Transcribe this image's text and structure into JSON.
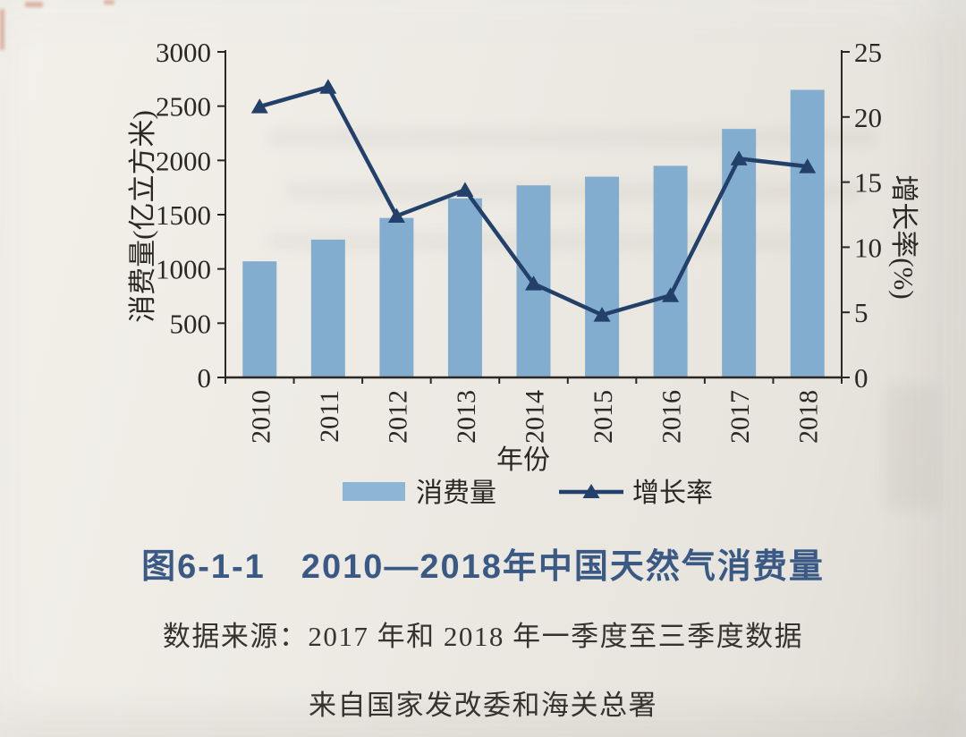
{
  "figure": {
    "title": "图6-1-1　2010—2018年中国天然气消费量",
    "source_line1": "数据来源：2017 年和 2018 年一季度至三季度数据",
    "source_line2": "来自国家发改委和海关总署"
  },
  "chart_data": {
    "type": "bar",
    "subtype": "bar-line-combo",
    "categories": [
      "2010",
      "2011",
      "2012",
      "2013",
      "2014",
      "2015",
      "2016",
      "2017",
      "2018"
    ],
    "series": [
      {
        "name": "消费量",
        "type": "bar",
        "axis": "left",
        "unit": "亿立方米",
        "color": "#83adce",
        "values": [
          1070,
          1270,
          1470,
          1650,
          1770,
          1850,
          1950,
          2290,
          2650
        ]
      },
      {
        "name": "增长率",
        "type": "line",
        "axis": "right",
        "unit": "%",
        "color": "#23406b",
        "marker": "triangle-up",
        "values": [
          20.8,
          22.3,
          12.4,
          14.4,
          7.2,
          4.8,
          6.3,
          16.8,
          16.2
        ]
      }
    ],
    "title": "图6-1-1　2010—2018年中国天然气消费量",
    "xlabel": "年份",
    "ylabel_left": "消费量(亿立方米)",
    "ylabel_right": "增长率(%)",
    "ylim_left": [
      0,
      3000
    ],
    "ylim_right": [
      0,
      25
    ],
    "yticks_left": [
      "0",
      "500",
      "1000",
      "1500",
      "2000",
      "2500",
      "3000"
    ],
    "yticks_right": [
      "0",
      "5",
      "10",
      "15",
      "20",
      "25"
    ],
    "grid": false,
    "legend_position": "bottom",
    "legend": [
      {
        "label": "消费量",
        "swatch": "bar"
      },
      {
        "label": "增长率",
        "swatch": "line-triangle"
      }
    ]
  },
  "colors": {
    "bar": "#83adce",
    "legend_swatch": "#8cb5d6",
    "line": "#23406b",
    "axis_text": "#2b2723",
    "title_blue": "#3a5a85",
    "paper": "#edeae4"
  }
}
